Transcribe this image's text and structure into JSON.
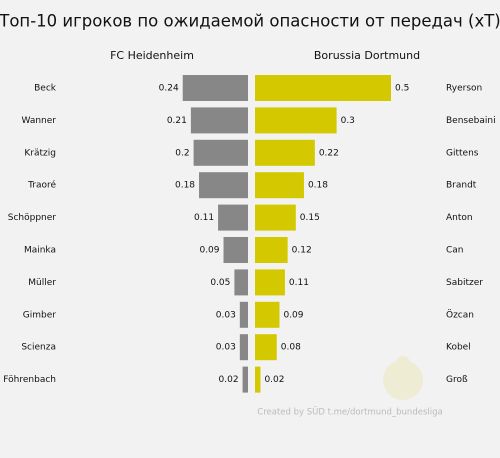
{
  "chart_data": {
    "type": "bar",
    "title": "Топ-10 игроков по ожидаемой опасности от передач (xT)",
    "series": [
      {
        "name": "FC Heidenheim",
        "color": "#878787",
        "categories": [
          "Beck",
          "Wanner",
          "Krätzig",
          "Traoré",
          "Schöppner",
          "Mainka",
          "Müller",
          "Gimber",
          "Scienza",
          "Föhrenbach"
        ],
        "values": [
          0.24,
          0.21,
          0.2,
          0.18,
          0.11,
          0.09,
          0.05,
          0.03,
          0.03,
          0.02
        ]
      },
      {
        "name": "Borussia Dortmund",
        "color": "#d4c900",
        "categories": [
          "Ryerson",
          "Bensebaini",
          "Gittens",
          "Brandt",
          "Anton",
          "Can",
          "Sabitzer",
          "Özcan",
          "Kobel",
          "Groß"
        ],
        "values": [
          0.5,
          0.3,
          0.22,
          0.18,
          0.15,
          0.12,
          0.11,
          0.09,
          0.08,
          0.02
        ]
      }
    ],
    "caption": "Created by SÜD t.me/dortmund_bundesliga"
  }
}
